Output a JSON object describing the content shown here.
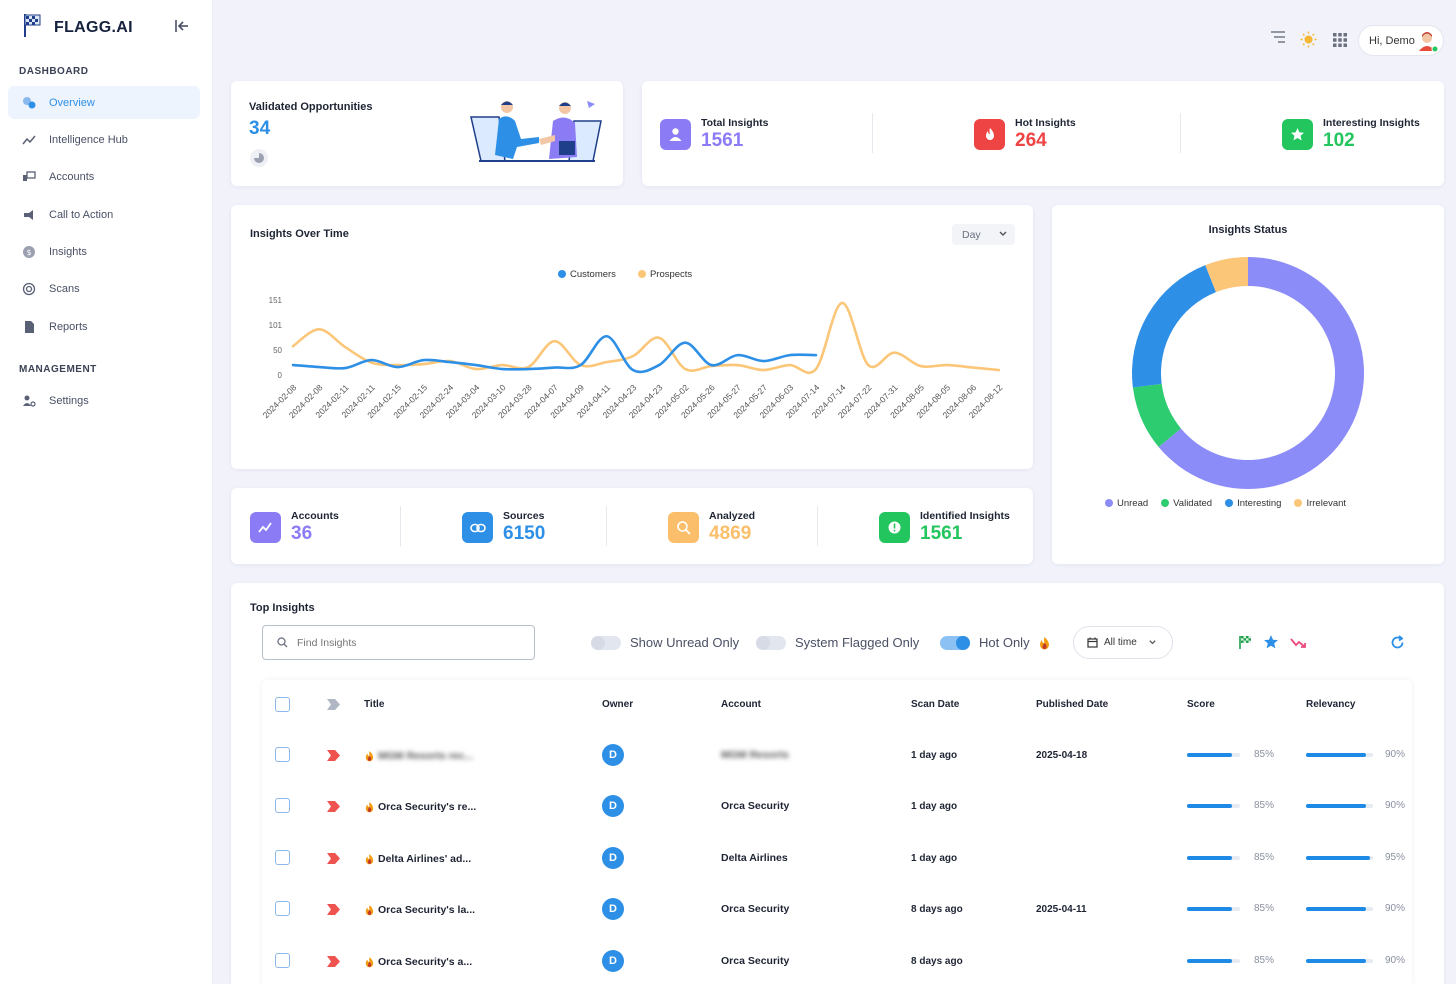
{
  "brand": {
    "name": "FLAGG.AI"
  },
  "sidebar": {
    "sections": [
      {
        "label": "DASHBOARD"
      },
      {
        "label": "MANAGEMENT"
      }
    ],
    "items": [
      {
        "label": "Overview",
        "icon": "overview-icon",
        "active": true
      },
      {
        "label": "Intelligence Hub",
        "icon": "trend-icon"
      },
      {
        "label": "Accounts",
        "icon": "accounts-icon"
      },
      {
        "label": "Call to Action",
        "icon": "megaphone-icon"
      },
      {
        "label": "Insights",
        "icon": "dollar-icon"
      },
      {
        "label": "Scans",
        "icon": "radar-icon"
      },
      {
        "label": "Reports",
        "icon": "document-icon"
      },
      {
        "label": "Settings",
        "icon": "users-gear-icon"
      }
    ]
  },
  "header": {
    "greeting": "Hi, Demo"
  },
  "validated": {
    "label": "Validated Opportunities",
    "value": "34"
  },
  "top_kpis": [
    {
      "label": "Total Insights",
      "value": "1561",
      "color": "#8b7cf6"
    },
    {
      "label": "Hot Insights",
      "value": "264",
      "color": "#ef4444"
    },
    {
      "label": "Interesting Insights",
      "value": "102",
      "color": "#22c55e"
    }
  ],
  "insights_over_time": {
    "title": "Insights Over Time",
    "select_value": "Day"
  },
  "status": {
    "title": "Insights Status"
  },
  "bottom_kpis": [
    {
      "label": "Accounts",
      "value": "36",
      "color": "#8b7cf6"
    },
    {
      "label": "Sources",
      "value": "6150",
      "color": "#2d8fe6"
    },
    {
      "label": "Analyzed",
      "value": "4869",
      "color": "#fbbf6b"
    },
    {
      "label": "Identified Insights",
      "value": "1561",
      "color": "#22c55e"
    }
  ],
  "top_insights": {
    "title": "Top Insights",
    "search_placeholder": "Find Insights",
    "toggles": [
      {
        "label": "Show Unread Only",
        "on": false
      },
      {
        "label": "System Flagged Only",
        "on": false
      },
      {
        "label": "Hot Only",
        "on": true
      }
    ],
    "date_filter": "All time",
    "columns": [
      "Title",
      "Owner",
      "Account",
      "Scan Date",
      "Published Date",
      "Score",
      "Relevancy"
    ],
    "rows": [
      {
        "title": "MGM Resorts rec...",
        "owner": "D",
        "account": "MGM Resorts",
        "scan_date": "1 day ago",
        "published": "2025-04-18",
        "score": 85,
        "score_label": "85%",
        "relevancy": 90,
        "relevancy_label": "90%",
        "blurred": true
      },
      {
        "title": "Orca Security's re...",
        "owner": "D",
        "account": "Orca Security",
        "scan_date": "1 day ago",
        "published": "",
        "score": 85,
        "score_label": "85%",
        "relevancy": 90,
        "relevancy_label": "90%",
        "blurred": false
      },
      {
        "title": "Delta Airlines' ad...",
        "owner": "D",
        "account": "Delta Airlines",
        "scan_date": "1 day ago",
        "published": "",
        "score": 85,
        "score_label": "85%",
        "relevancy": 95,
        "relevancy_label": "95%",
        "blurred": false
      },
      {
        "title": "Orca Security's la...",
        "owner": "D",
        "account": "Orca Security",
        "scan_date": "8 days ago",
        "published": "2025-04-11",
        "score": 85,
        "score_label": "85%",
        "relevancy": 90,
        "relevancy_label": "90%",
        "blurred": false
      },
      {
        "title": "Orca Security's a...",
        "owner": "D",
        "account": "Orca Security",
        "scan_date": "8 days ago",
        "published": "",
        "score": 85,
        "score_label": "85%",
        "relevancy": 90,
        "relevancy_label": "90%",
        "blurred": false
      }
    ]
  },
  "chart_data": [
    {
      "type": "line",
      "title": "Insights Over Time",
      "xlabel": "",
      "ylabel": "",
      "ylim": [
        0,
        151
      ],
      "yticks": [
        "0",
        "50",
        "101",
        "151"
      ],
      "legend_position": "top-center",
      "x": [
        "2024-02-08",
        "2024-02-08",
        "2024-02-11",
        "2024-02-11",
        "2024-02-15",
        "2024-02-15",
        "2024-02-24",
        "2024-03-04",
        "2024-03-10",
        "2024-03-28",
        "2024-04-07",
        "2024-04-09",
        "2024-04-11",
        "2024-04-23",
        "2024-04-23",
        "2024-05-02",
        "2024-05-26",
        "2024-05-27",
        "2024-05-27",
        "2024-06-03",
        "2024-07-14",
        "2024-07-14",
        "2024-07-22",
        "2024-07-31",
        "2024-08-05",
        "2024-08-05",
        "2024-08-06",
        "2024-08-12"
      ],
      "series": [
        {
          "name": "Customers",
          "color": "#2d8fe6",
          "values": [
            20,
            16,
            14,
            30,
            16,
            30,
            26,
            20,
            12,
            12,
            15,
            20,
            78,
            10,
            20,
            65,
            20,
            40,
            28,
            40,
            40,
            null,
            null,
            null,
            null,
            null,
            null,
            null
          ]
        },
        {
          "name": "Prospects",
          "color": "#fcc679",
          "values": [
            58,
            92,
            56,
            25,
            20,
            22,
            28,
            12,
            20,
            16,
            68,
            20,
            26,
            38,
            75,
            12,
            18,
            20,
            10,
            20,
            12,
            145,
            20,
            45,
            18,
            20,
            15,
            10
          ]
        }
      ]
    },
    {
      "type": "pie",
      "title": "Insights Status",
      "legend_position": "bottom",
      "categories": [
        "Unread",
        "Validated",
        "Interesting",
        "Irrelevant"
      ],
      "values": [
        64,
        9,
        21,
        6
      ],
      "colors": [
        "#8b8cf7",
        "#2ecc71",
        "#2d8fe6",
        "#fcc679"
      ]
    }
  ]
}
